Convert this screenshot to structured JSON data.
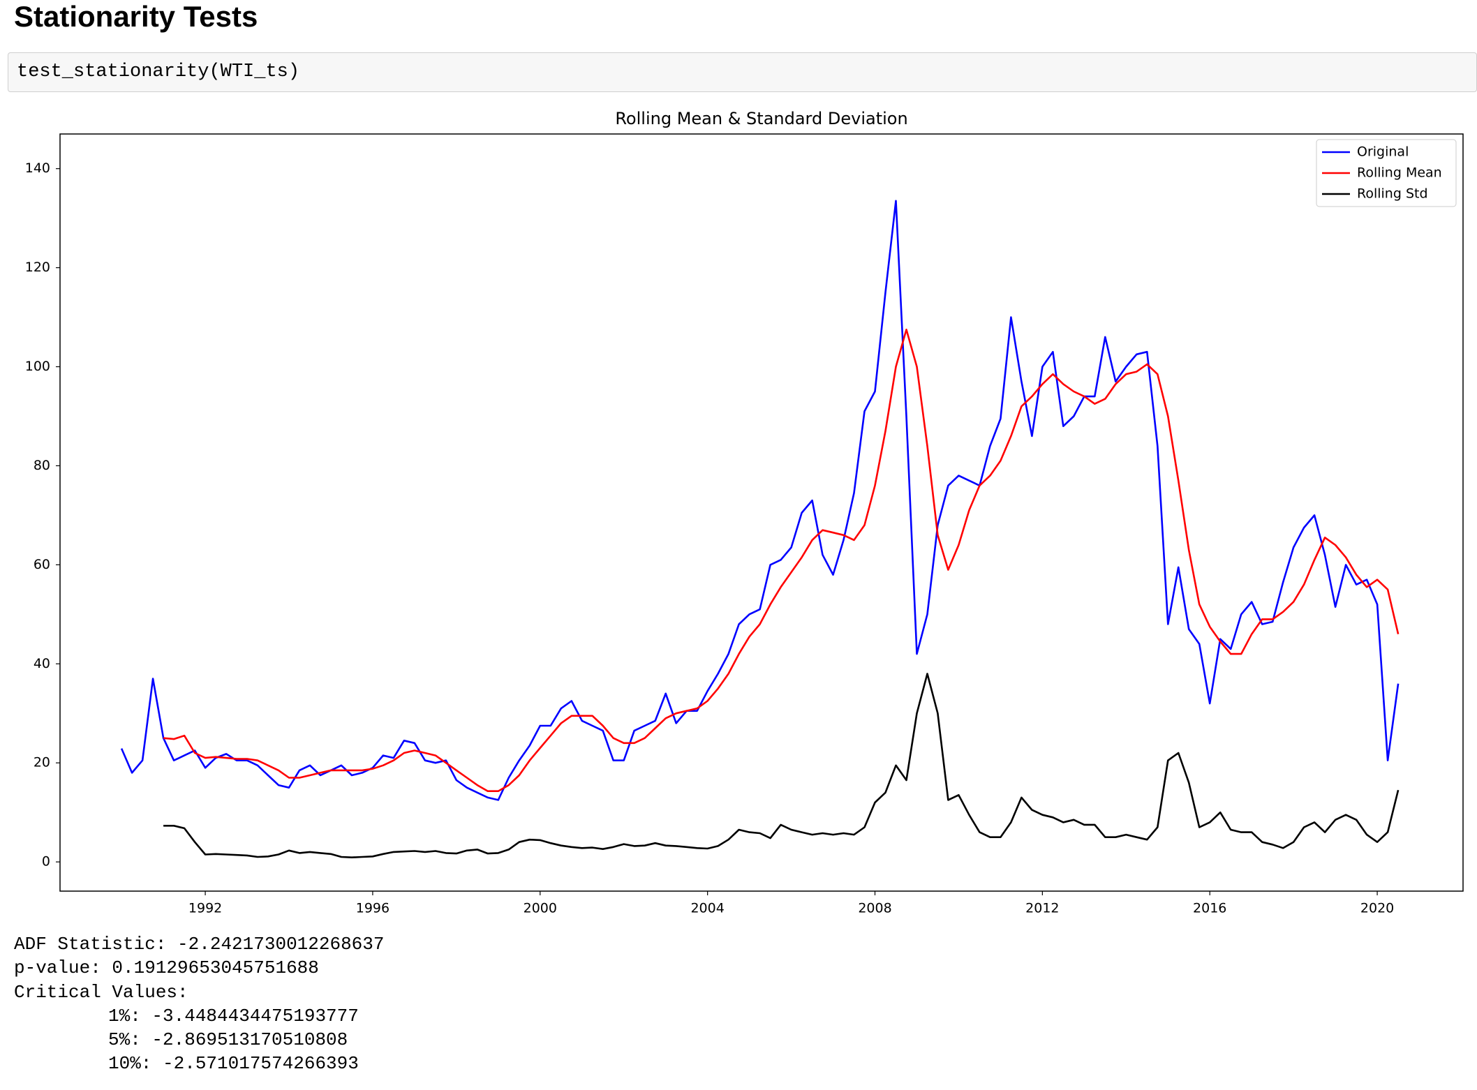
{
  "header": {
    "title": "Stationarity Tests"
  },
  "code": "test_stationarity(WTI_ts)",
  "chart_data": {
    "type": "line",
    "title": "Rolling Mean & Standard Deviation",
    "x": [
      1990.0,
      1990.25,
      1990.5,
      1990.75,
      1991.0,
      1991.25,
      1991.5,
      1991.75,
      1992.0,
      1992.25,
      1992.5,
      1992.75,
      1993.0,
      1993.25,
      1993.5,
      1993.75,
      1994.0,
      1994.25,
      1994.5,
      1994.75,
      1995.0,
      1995.25,
      1995.5,
      1995.75,
      1996.0,
      1996.25,
      1996.5,
      1996.75,
      1997.0,
      1997.25,
      1997.5,
      1997.75,
      1998.0,
      1998.25,
      1998.5,
      1998.75,
      1999.0,
      1999.25,
      1999.5,
      1999.75,
      2000.0,
      2000.25,
      2000.5,
      2000.75,
      2001.0,
      2001.25,
      2001.5,
      2001.75,
      2002.0,
      2002.25,
      2002.5,
      2002.75,
      2003.0,
      2003.25,
      2003.5,
      2003.75,
      2004.0,
      2004.25,
      2004.5,
      2004.75,
      2005.0,
      2005.25,
      2005.5,
      2005.75,
      2006.0,
      2006.25,
      2006.5,
      2006.75,
      2007.0,
      2007.25,
      2007.5,
      2007.75,
      2008.0,
      2008.25,
      2008.5,
      2008.75,
      2009.0,
      2009.25,
      2009.5,
      2009.75,
      2010.0,
      2010.25,
      2010.5,
      2010.75,
      2011.0,
      2011.25,
      2011.5,
      2011.75,
      2012.0,
      2012.25,
      2012.5,
      2012.75,
      2013.0,
      2013.25,
      2013.5,
      2013.75,
      2014.0,
      2014.25,
      2014.5,
      2014.75,
      2015.0,
      2015.25,
      2015.5,
      2015.75,
      2016.0,
      2016.25,
      2016.5,
      2016.75,
      2017.0,
      2017.25,
      2017.5,
      2017.75,
      2018.0,
      2018.25,
      2018.5,
      2018.75,
      2019.0,
      2019.25,
      2019.5,
      2019.75,
      2020.0,
      2020.25,
      2020.5
    ],
    "series": [
      {
        "name": "Original",
        "color": "#0000ff",
        "values": [
          22.9,
          18.0,
          20.5,
          37.0,
          25.0,
          20.5,
          21.5,
          22.5,
          19.0,
          21.0,
          21.8,
          20.5,
          20.5,
          19.5,
          17.5,
          15.5,
          15.0,
          18.5,
          19.5,
          17.5,
          18.5,
          19.5,
          17.5,
          18.0,
          19.0,
          21.5,
          21.0,
          24.5,
          24.0,
          20.5,
          20.0,
          20.5,
          16.5,
          15.0,
          14.0,
          13.0,
          12.5,
          17.0,
          20.5,
          23.5,
          27.5,
          27.5,
          31.0,
          32.5,
          28.5,
          27.5,
          26.5,
          20.5,
          20.5,
          26.5,
          27.5,
          28.5,
          34.0,
          28.0,
          30.5,
          30.5,
          34.5,
          38.0,
          42.0,
          48.0,
          50.0,
          51.0,
          60.0,
          61.0,
          63.5,
          70.5,
          73.0,
          62.0,
          58.0,
          65.0,
          74.5,
          91.0,
          95.0,
          115.0,
          133.5,
          90.0,
          42.0,
          50.0,
          68.0,
          76.0,
          78.0,
          77.0,
          76.0,
          84.0,
          89.5,
          110.0,
          97.0,
          86.0,
          100.0,
          103.0,
          88.0,
          90.0,
          94.0,
          94.0,
          106.0,
          97.0,
          100.0,
          102.5,
          103.0,
          84.0,
          48.0,
          59.5,
          47.0,
          44.0,
          32.0,
          45.0,
          43.0,
          50.0,
          52.5,
          48.0,
          48.5,
          56.5,
          63.5,
          67.5,
          70.0,
          62.0,
          51.5,
          60.0,
          56.0,
          57.0,
          52.0,
          20.5,
          36.0
        ]
      },
      {
        "name": "Rolling Mean",
        "color": "#ff0000",
        "values": [
          null,
          null,
          null,
          null,
          25.0,
          24.8,
          25.5,
          22.0,
          21.0,
          21.2,
          21.0,
          20.8,
          20.8,
          20.5,
          19.5,
          18.5,
          17.0,
          17.0,
          17.5,
          18.0,
          18.5,
          18.5,
          18.5,
          18.5,
          18.8,
          19.5,
          20.5,
          22.0,
          22.5,
          22.0,
          21.5,
          20.0,
          18.5,
          17.0,
          15.5,
          14.3,
          14.3,
          15.5,
          17.5,
          20.5,
          23.0,
          25.5,
          28.0,
          29.5,
          29.5,
          29.5,
          27.5,
          25.0,
          24.0,
          24.0,
          25.0,
          27.0,
          29.0,
          30.0,
          30.5,
          31.0,
          32.5,
          35.0,
          38.0,
          42.0,
          45.5,
          48.0,
          52.0,
          55.5,
          58.5,
          61.5,
          65.0,
          67.0,
          66.5,
          66.0,
          65.0,
          68.0,
          76.0,
          87.0,
          100.0,
          107.5,
          100.0,
          84.0,
          66.0,
          59.0,
          64.0,
          71.0,
          76.0,
          78.0,
          81.0,
          86.0,
          92.0,
          94.0,
          96.5,
          98.5,
          96.5,
          95.0,
          94.0,
          92.5,
          93.5,
          96.5,
          98.5,
          99.0,
          100.5,
          98.5,
          90.0,
          77.0,
          63.0,
          52.0,
          47.5,
          44.5,
          42.0,
          42.0,
          46.0,
          49.0,
          49.0,
          50.5,
          52.5,
          56.0,
          61.0,
          65.5,
          64.0,
          61.5,
          58.0,
          55.5,
          57.0,
          55.0,
          46.0
        ]
      },
      {
        "name": "Rolling Std",
        "color": "#000000",
        "values": [
          null,
          null,
          null,
          null,
          7.3,
          7.3,
          6.8,
          4.0,
          1.5,
          1.6,
          1.5,
          1.4,
          1.3,
          1.0,
          1.1,
          1.5,
          2.3,
          1.8,
          2.0,
          1.8,
          1.6,
          1.0,
          0.9,
          1.0,
          1.1,
          1.6,
          2.0,
          2.1,
          2.2,
          2.0,
          2.2,
          1.8,
          1.7,
          2.3,
          2.5,
          1.7,
          1.8,
          2.5,
          4.0,
          4.5,
          4.4,
          3.8,
          3.3,
          3.0,
          2.8,
          2.9,
          2.6,
          3.0,
          3.6,
          3.2,
          3.3,
          3.8,
          3.3,
          3.2,
          3.0,
          2.8,
          2.7,
          3.2,
          4.5,
          6.5,
          6.0,
          5.8,
          4.8,
          7.5,
          6.5,
          6.0,
          5.5,
          5.8,
          5.5,
          5.8,
          5.5,
          7.0,
          12.0,
          14.0,
          19.5,
          16.5,
          30.0,
          38.0,
          30.0,
          12.5,
          13.5,
          9.5,
          6.0,
          5.0,
          5.0,
          8.0,
          13.0,
          10.5,
          9.5,
          9.0,
          8.0,
          8.5,
          7.5,
          7.5,
          5.0,
          5.0,
          5.5,
          5.0,
          4.5,
          7.0,
          20.5,
          22.0,
          16.0,
          7.0,
          8.0,
          10.0,
          6.5,
          6.0,
          6.0,
          4.0,
          3.5,
          2.8,
          4.0,
          7.0,
          8.0,
          6.0,
          8.5,
          9.5,
          8.5,
          5.5,
          4.0,
          6.0,
          14.5
        ]
      }
    ],
    "xlim": [
      1988.53,
      2022.05
    ],
    "xticks": [
      1992,
      1996,
      2000,
      2004,
      2008,
      2012,
      2016,
      2020
    ],
    "ylim": [
      -5.9,
      147.0
    ],
    "yticks": [
      0,
      20,
      40,
      60,
      80,
      100,
      120,
      140
    ],
    "grid": false,
    "legend": "upper right"
  },
  "output": [
    "ADF Statistic: -2.2421730012268637",
    "p-value: 0.19129653045751688",
    "Critical Values:",
    "1%: -3.4484434475193777",
    "5%: -2.869513170510808",
    "10%: -2.571017574266393"
  ]
}
